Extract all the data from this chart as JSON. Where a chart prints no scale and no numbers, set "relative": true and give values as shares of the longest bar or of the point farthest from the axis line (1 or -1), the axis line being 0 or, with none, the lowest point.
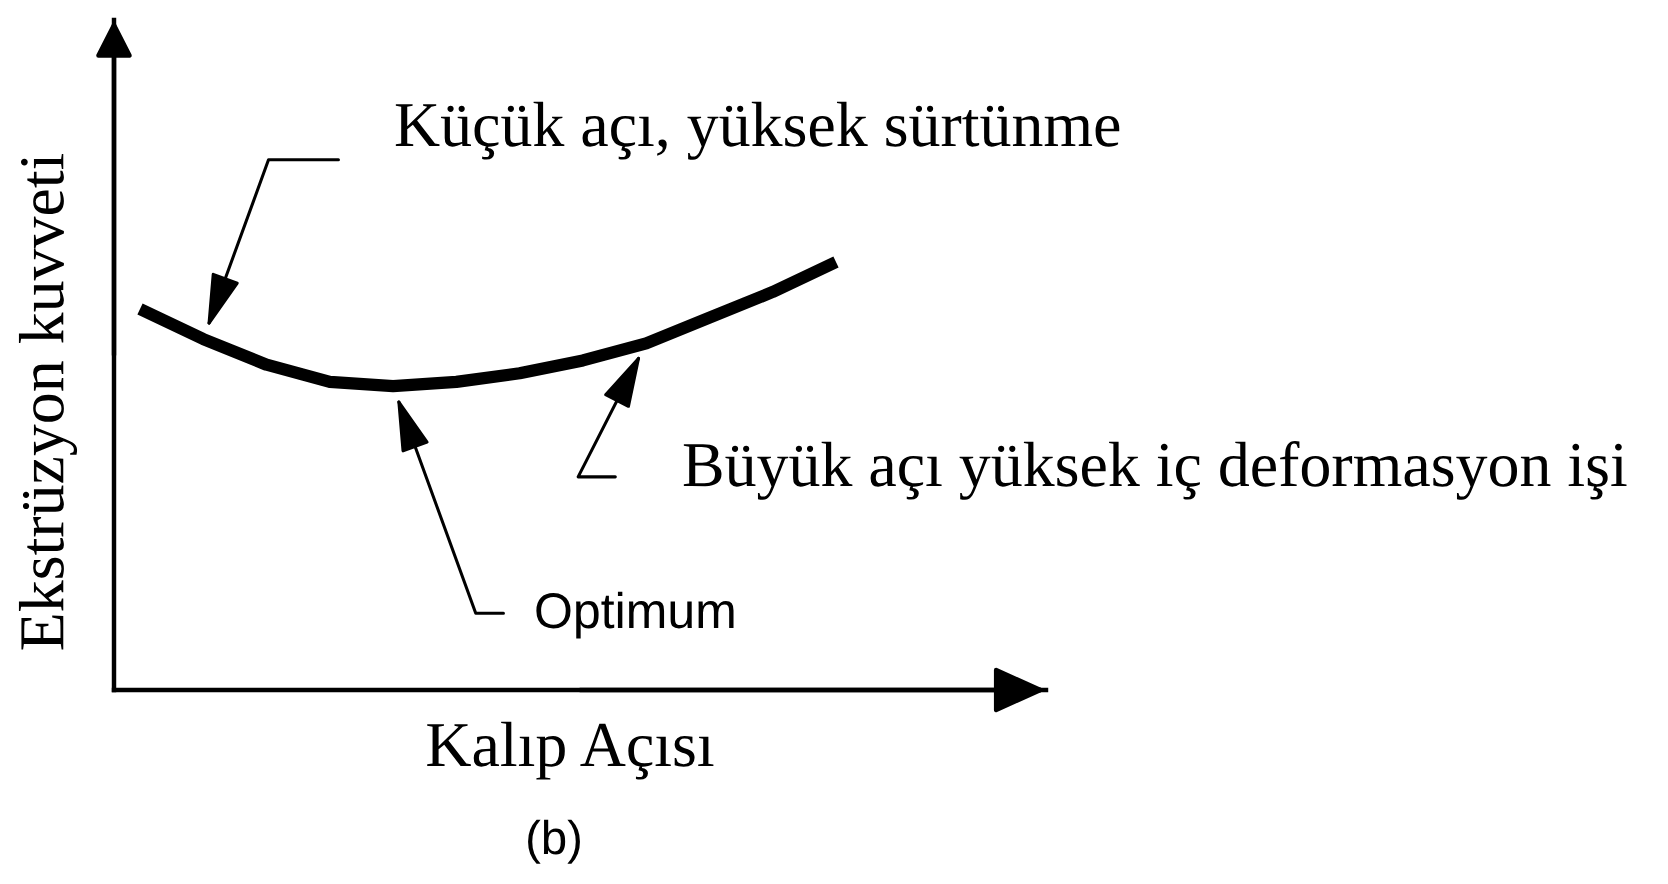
{
  "chart_data": {
    "type": "line",
    "relative": true,
    "categories": [
      null,
      null,
      null,
      null,
      null,
      null,
      null,
      null,
      null,
      null,
      null,
      null
    ],
    "values": [
      0.89,
      0.82,
      0.76,
      0.72,
      0.71,
      0.72,
      0.74,
      0.77,
      0.81,
      0.87,
      0.93,
      1.0
    ],
    "color": "#000000",
    "line_style": "solid",
    "xlabel": "Kalıp Açısı",
    "ylabel": "Ekstrüzyon kuvveti",
    "annotations": [
      "Küçük açı, yüksek sürtünme",
      "Büyük açı yüksek iç deformasyon işi",
      "Optimum",
      "(b)"
    ]
  }
}
